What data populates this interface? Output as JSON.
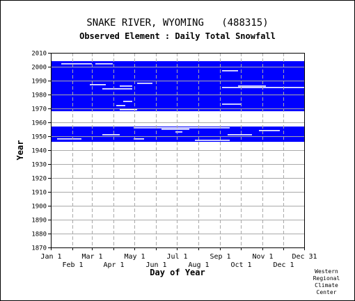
{
  "chart_data": {
    "type": "heatmap",
    "title": "SNAKE RIVER, WYOMING   (488315)",
    "subtitle": "Observed Element : Daily Total Snowfall",
    "xlabel": "Day of Year",
    "ylabel": "Year",
    "ylim": [
      1870,
      2010
    ],
    "y_ticks": [
      1870,
      1880,
      1890,
      1900,
      1910,
      1920,
      1930,
      1940,
      1950,
      1960,
      1970,
      1980,
      1990,
      2000,
      2010
    ],
    "xlim": [
      1,
      365
    ],
    "x_ticks": [
      {
        "label": "Jan 1",
        "day": 1,
        "row": 1
      },
      {
        "label": "Feb 1",
        "day": 32,
        "row": 2
      },
      {
        "label": "Mar 1",
        "day": 60,
        "row": 1
      },
      {
        "label": "Apr 1",
        "day": 91,
        "row": 2
      },
      {
        "label": "May 1",
        "day": 121,
        "row": 1
      },
      {
        "label": "Jun 1",
        "day": 152,
        "row": 2
      },
      {
        "label": "Jul 1",
        "day": 182,
        "row": 1
      },
      {
        "label": "Aug 1",
        "day": 213,
        "row": 2
      },
      {
        "label": "Sep 1",
        "day": 244,
        "row": 1
      },
      {
        "label": "Oct 1",
        "day": 274,
        "row": 2
      },
      {
        "label": "Nov 1",
        "day": 305,
        "row": 1
      },
      {
        "label": "Dec 1",
        "day": 335,
        "row": 2
      },
      {
        "label": "Dec 31",
        "day": 365,
        "row": 1
      }
    ],
    "grid": true,
    "data_color": "#0000ff",
    "coverage": [
      {
        "from_year": 1947,
        "to_year": 1957,
        "from_day": 1,
        "to_day": 365
      },
      {
        "from_year": 1969,
        "to_year": 2004,
        "from_day": 1,
        "to_day": 365
      }
    ],
    "gaps": [
      {
        "year": 2002,
        "from_day": 16,
        "to_day": 60
      },
      {
        "year": 2002,
        "from_day": 65,
        "to_day": 90
      },
      {
        "year": 1987,
        "from_day": 57,
        "to_day": 80
      },
      {
        "year": 1986,
        "from_day": 100,
        "to_day": 118
      },
      {
        "year": 1988,
        "from_day": 125,
        "to_day": 147
      },
      {
        "year": 1984,
        "from_day": 75,
        "to_day": 118
      },
      {
        "year": 1975,
        "from_day": 105,
        "to_day": 118
      },
      {
        "year": 1972,
        "from_day": 95,
        "to_day": 108
      },
      {
        "year": 1969,
        "from_day": 100,
        "to_day": 125
      },
      {
        "year": 1997,
        "from_day": 247,
        "to_day": 270
      },
      {
        "year": 1985,
        "from_day": 247,
        "to_day": 365
      },
      {
        "year": 1986,
        "from_day": 270,
        "to_day": 310
      },
      {
        "year": 1973,
        "from_day": 247,
        "to_day": 275
      },
      {
        "year": 1956,
        "from_day": 120,
        "to_day": 258
      },
      {
        "year": 1955,
        "from_day": 160,
        "to_day": 200
      },
      {
        "year": 1951,
        "from_day": 75,
        "to_day": 100
      },
      {
        "year": 1951,
        "from_day": 255,
        "to_day": 290
      },
      {
        "year": 1954,
        "from_day": 300,
        "to_day": 330
      },
      {
        "year": 1948,
        "from_day": 10,
        "to_day": 45
      },
      {
        "year": 1947,
        "from_day": 208,
        "to_day": 258
      },
      {
        "year": 1948,
        "from_day": 120,
        "to_day": 135
      },
      {
        "year": 1953,
        "from_day": 180,
        "to_day": 190
      }
    ]
  },
  "credit": [
    "Western",
    "Regional",
    "Climate",
    "Center"
  ]
}
